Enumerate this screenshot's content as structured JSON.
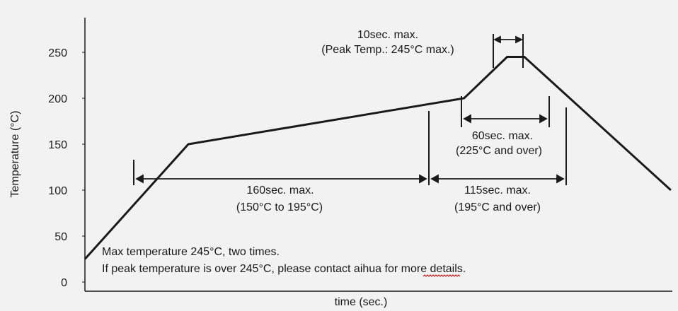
{
  "chart_data": {
    "type": "line",
    "title": "",
    "xlabel": "time (sec.)",
    "ylabel": "Temperature (°C)",
    "ylim": [
      0,
      300
    ],
    "yticks": [
      0,
      50,
      100,
      150,
      200,
      250
    ],
    "grid": false,
    "series": [
      {
        "values": [
          {
            "x": 0,
            "y": 25
          },
          {
            "x": 60,
            "y": 150
          },
          {
            "x": 220,
            "y": 200
          },
          {
            "x": 245,
            "y": 245
          },
          {
            "x": 255,
            "y": 245
          },
          {
            "x": 340,
            "y": 100
          }
        ]
      }
    ],
    "annotations": {
      "peak_line1": "10sec. max.",
      "peak_line2": "(Peak Temp.: 245°C max.)",
      "over225_line1": "60sec. max.",
      "over225_line2": "(225°C and over)",
      "preheat_line1": "160sec. max.",
      "preheat_line2": "(150°C to 195°C)",
      "over195_line1": "115sec. max.",
      "over195_line2": "(195°C and over)",
      "note_line1": "Max temperature 245°C, two times.",
      "note_line2": "If peak temperature is over 245°C, please contact aihua for more details."
    },
    "colors": {
      "line": "#1a1a1a",
      "background": "#f2f2f2",
      "underline": "#cc0000"
    }
  }
}
